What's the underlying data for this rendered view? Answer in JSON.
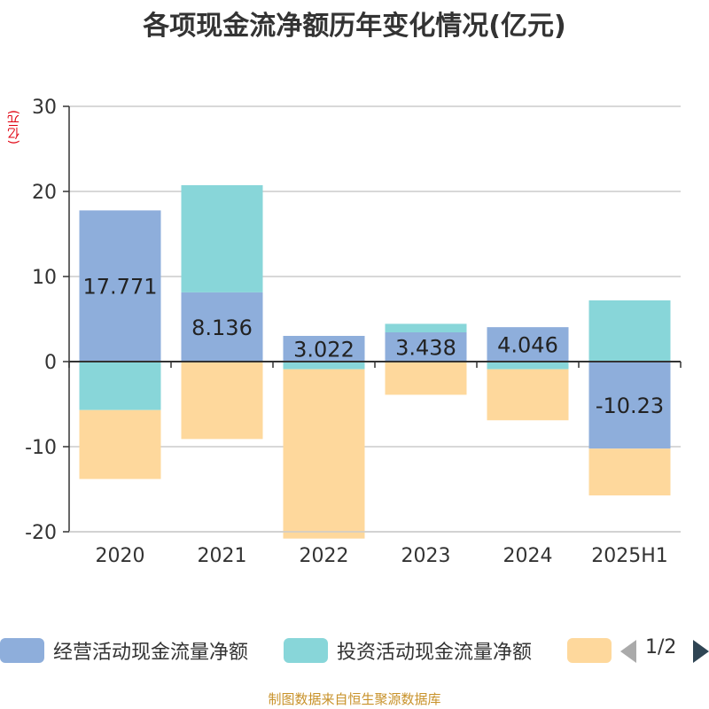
{
  "title": "各项现金流净额历年变化情况(亿元)",
  "unit_label": "(亿元)",
  "source": "制图数据来自恒生聚源数据库",
  "legend": {
    "items": [
      {
        "label": "经营活动现金流量净额",
        "color": "#8eaedb"
      },
      {
        "label": "投资活动现金流量净额",
        "color": "#88d6d9"
      },
      {
        "label": "",
        "color": "#fed89c"
      }
    ],
    "pager": "1/2"
  },
  "chart_data": {
    "type": "bar",
    "stacked": true,
    "categories": [
      "2020",
      "2021",
      "2022",
      "2023",
      "2024",
      "2025H1"
    ],
    "ylim": [
      -20,
      30
    ],
    "yticks": [
      -20,
      -10,
      0,
      10,
      20,
      30
    ],
    "grid": true,
    "legend_position": "bottom",
    "series": [
      {
        "name": "经营活动现金流量净额",
        "color": "#8eaedb",
        "values": [
          17.771,
          8.136,
          3.022,
          3.438,
          4.046,
          -10.23
        ],
        "labels": [
          "17.771",
          "8.136",
          "3.022",
          "3.438",
          "4.046",
          "-10.23"
        ]
      },
      {
        "name": "投资活动现金流量净额",
        "color": "#88d6d9",
        "values": [
          -5.7,
          12.6,
          -0.9,
          1.0,
          -0.9,
          7.2
        ]
      },
      {
        "color": "#fed89c",
        "values": [
          -8.1,
          -9.1,
          -19.9,
          -3.9,
          -6.0,
          -5.5
        ]
      }
    ]
  }
}
